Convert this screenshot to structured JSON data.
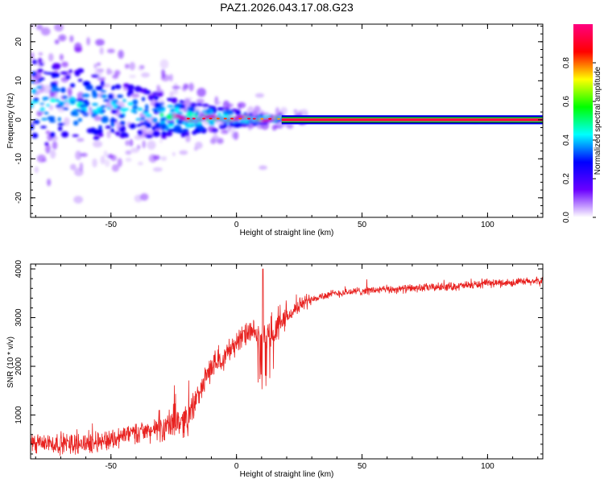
{
  "chart_data": [
    {
      "type": "heatmap",
      "title": "PAZ1.2026.043.17.08.G23",
      "xlabel": "Height of straight line (km)",
      "ylabel": "Frequency (Hz)",
      "xlim": [
        -82,
        122
      ],
      "ylim": [
        -25,
        24.5
      ],
      "xticks": [
        -50,
        0,
        50,
        100
      ],
      "yticks": [
        -20,
        -10,
        0,
        10,
        20
      ],
      "colorbar": {
        "label": "Normalized spectral amplitude",
        "range": [
          0,
          1
        ],
        "ticks": [
          0.0,
          0.2,
          0.4,
          0.6,
          0.8
        ],
        "tick_labels": [
          "0.0",
          "0.2",
          "0.4",
          "0.6",
          "0.8"
        ],
        "colormap": [
          "#ffffff",
          "#6a00ff",
          "#0000ff",
          "#00ffff",
          "#00ff00",
          "#ffff00",
          "#ff0000",
          "#ff0080"
        ]
      },
      "ridge": {
        "description_points": [
          {
            "x": -80,
            "f": 4.5
          },
          {
            "x": -70,
            "f": 4.0
          },
          {
            "x": -60,
            "f": 3.5
          },
          {
            "x": -50,
            "f": 3.0
          },
          {
            "x": -40,
            "f": 2.0
          },
          {
            "x": -30,
            "f": 1.0
          },
          {
            "x": -20,
            "f": 0.3
          },
          {
            "x": 0,
            "f": 0.3
          },
          {
            "x": 20,
            "f": 0.2
          },
          {
            "x": 122,
            "f": 0.0
          }
        ],
        "coherent_from_x": -25,
        "max_amplitude_from_x": 18
      }
    },
    {
      "type": "line",
      "xlabel": "Height of straight line (km)",
      "ylabel": "SNR (10 * v/v)",
      "xlim": [
        -82,
        122
      ],
      "ylim": [
        100,
        4100
      ],
      "xticks": [
        -50,
        0,
        50,
        100
      ],
      "yticks": [
        1000,
        2000,
        3000,
        4000
      ],
      "color": "#e8211f",
      "series": [
        {
          "name": "SNR",
          "trend": [
            {
              "x": -82,
              "y": 400
            },
            {
              "x": -60,
              "y": 420
            },
            {
              "x": -50,
              "y": 500
            },
            {
              "x": -40,
              "y": 650
            },
            {
              "x": -30,
              "y": 700
            },
            {
              "x": -25,
              "y": 850
            },
            {
              "x": -20,
              "y": 900
            },
            {
              "x": -17,
              "y": 1200
            },
            {
              "x": -10,
              "y": 2000
            },
            {
              "x": -5,
              "y": 2200
            },
            {
              "x": 0,
              "y": 2500
            },
            {
              "x": 5,
              "y": 2700
            },
            {
              "x": 10,
              "y": 2600
            },
            {
              "x": 15,
              "y": 2700
            },
            {
              "x": 20,
              "y": 3000
            },
            {
              "x": 25,
              "y": 3250
            },
            {
              "x": 30,
              "y": 3400
            },
            {
              "x": 40,
              "y": 3500
            },
            {
              "x": 50,
              "y": 3550
            },
            {
              "x": 70,
              "y": 3600
            },
            {
              "x": 90,
              "y": 3650
            },
            {
              "x": 100,
              "y": 3700
            },
            {
              "x": 122,
              "y": 3750
            }
          ],
          "spike": {
            "x": 10.5,
            "y": 4000
          }
        }
      ]
    }
  ]
}
